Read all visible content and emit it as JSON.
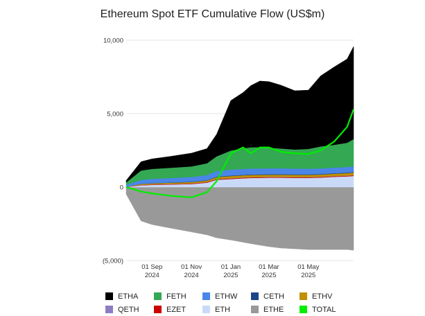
{
  "chart_data": {
    "type": "area",
    "title": "Ethereum Spot ETF Cumulative Flow (US$m)",
    "xlabel": "",
    "ylabel": "",
    "ylim": [
      -5000,
      10000
    ],
    "y_ticks": [
      "10,000",
      "5,000",
      "0",
      "(5,000)"
    ],
    "x_ticks": [
      {
        "line1": "01 Sep",
        "line2": "2024"
      },
      {
        "line1": "01 Nov",
        "line2": "2024"
      },
      {
        "line1": "01 Jan",
        "line2": "2025"
      },
      {
        "line1": "01 Mar",
        "line2": "2025"
      },
      {
        "line1": "01 May",
        "line2": "2025"
      }
    ],
    "x_dates": [
      "2024-07-23",
      "2024-08-15",
      "2024-09-01",
      "2024-10-01",
      "2024-11-01",
      "2024-11-25",
      "2024-12-10",
      "2025-01-01",
      "2025-01-20",
      "2025-02-01",
      "2025-02-15",
      "2025-03-01",
      "2025-03-20",
      "2025-04-10",
      "2025-05-01",
      "2025-05-20",
      "2025-06-10",
      "2025-06-30",
      "2025-07-10"
    ],
    "grid": true,
    "legend_position": "bottom",
    "series": [
      {
        "name": "ETHE",
        "color": "#999999",
        "values": [
          -480,
          -2300,
          -2550,
          -2800,
          -3050,
          -3250,
          -3450,
          -3600,
          -3750,
          -3850,
          -3950,
          -4050,
          -4150,
          -4200,
          -4250,
          -4250,
          -4250,
          -4250,
          -4300
        ]
      },
      {
        "name": "ETH",
        "color": "#c9daf8",
        "values": [
          5,
          120,
          150,
          180,
          210,
          300,
          500,
          550,
          600,
          620,
          630,
          640,
          640,
          630,
          630,
          650,
          700,
          730,
          760
        ]
      },
      {
        "name": "EZET",
        "color": "#cc0000",
        "values": [
          0,
          20,
          25,
          30,
          35,
          35,
          40,
          40,
          40,
          40,
          40,
          40,
          40,
          40,
          40,
          40,
          40,
          40,
          40
        ]
      },
      {
        "name": "QETH",
        "color": "#8e7cc3",
        "values": [
          0,
          10,
          10,
          10,
          10,
          10,
          15,
          15,
          15,
          15,
          15,
          15,
          15,
          15,
          15,
          15,
          15,
          15,
          15
        ]
      },
      {
        "name": "ETHV",
        "color": "#bf9000",
        "values": [
          20,
          60,
          70,
          80,
          90,
          100,
          130,
          150,
          150,
          150,
          150,
          150,
          150,
          150,
          150,
          150,
          160,
          170,
          180
        ]
      },
      {
        "name": "CETH",
        "color": "#1c4587",
        "values": [
          0,
          10,
          15,
          20,
          25,
          25,
          30,
          35,
          35,
          35,
          35,
          35,
          35,
          35,
          35,
          35,
          35,
          35,
          35
        ]
      },
      {
        "name": "ETHW",
        "color": "#4a86e8",
        "values": [
          140,
          270,
          290,
          300,
          320,
          350,
          380,
          400,
          400,
          400,
          400,
          400,
          400,
          390,
          380,
          380,
          380,
          380,
          390
        ]
      },
      {
        "name": "FETH",
        "color": "#34a853",
        "values": [
          150,
          640,
          680,
          700,
          720,
          800,
          1000,
          1300,
          1400,
          1450,
          1450,
          1400,
          1350,
          1300,
          1350,
          1500,
          1550,
          1650,
          1850
        ]
      },
      {
        "name": "ETHA",
        "color": "#000000",
        "values": [
          135,
          600,
          680,
          780,
          900,
          1000,
          1500,
          3400,
          3800,
          4200,
          4500,
          4500,
          4300,
          4000,
          4000,
          4800,
          5300,
          5700,
          6300
        ]
      },
      {
        "name": "TOTAL",
        "color": "#00ee00",
        "values": [
          0,
          -300,
          -430,
          -600,
          -700,
          -350,
          400,
          2300,
          2700,
          2300,
          2700,
          2700,
          2400,
          2300,
          2250,
          2500,
          3100,
          4100,
          5300
        ]
      }
    ]
  }
}
